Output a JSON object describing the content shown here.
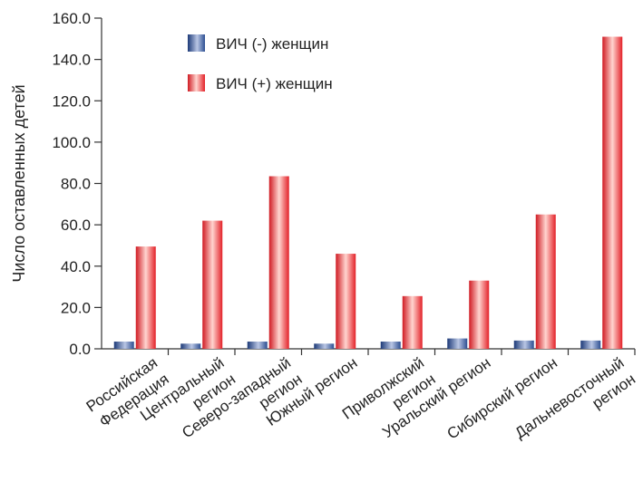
{
  "chart_data": {
    "type": "bar",
    "ylabel": "Число оставленных детей",
    "xlabel": "",
    "ylim": [
      0,
      160
    ],
    "yticks": [
      "0.0",
      "20.0",
      "40.0",
      "60.0",
      "80.0",
      "100.0",
      "120.0",
      "140.0",
      "160.0"
    ],
    "ytick_values": [
      0,
      20,
      40,
      60,
      80,
      100,
      120,
      140,
      160
    ],
    "categories": [
      [
        "Российская",
        "Федерация"
      ],
      [
        "Центральный",
        "регион"
      ],
      [
        "Северо-западный",
        "регион"
      ],
      [
        "Южный регион"
      ],
      [
        "Приволжский",
        "регион"
      ],
      [
        "Уральский регион"
      ],
      [
        "Сибирский регион"
      ],
      [
        "Дальневосточный",
        "регион"
      ]
    ],
    "series": [
      {
        "name": "ВИЧ (-) женщин",
        "color": "#2a4d8f",
        "values": [
          3.5,
          2.5,
          3.5,
          2.5,
          3.5,
          5.0,
          4.0,
          4.0
        ]
      },
      {
        "name": "ВИЧ (+) женщин",
        "color": "#e8202a",
        "values": [
          49.5,
          62.0,
          83.5,
          46.0,
          25.5,
          33.0,
          65.0,
          151.0
        ]
      }
    ],
    "legend_position": "top-left",
    "grid": false
  }
}
